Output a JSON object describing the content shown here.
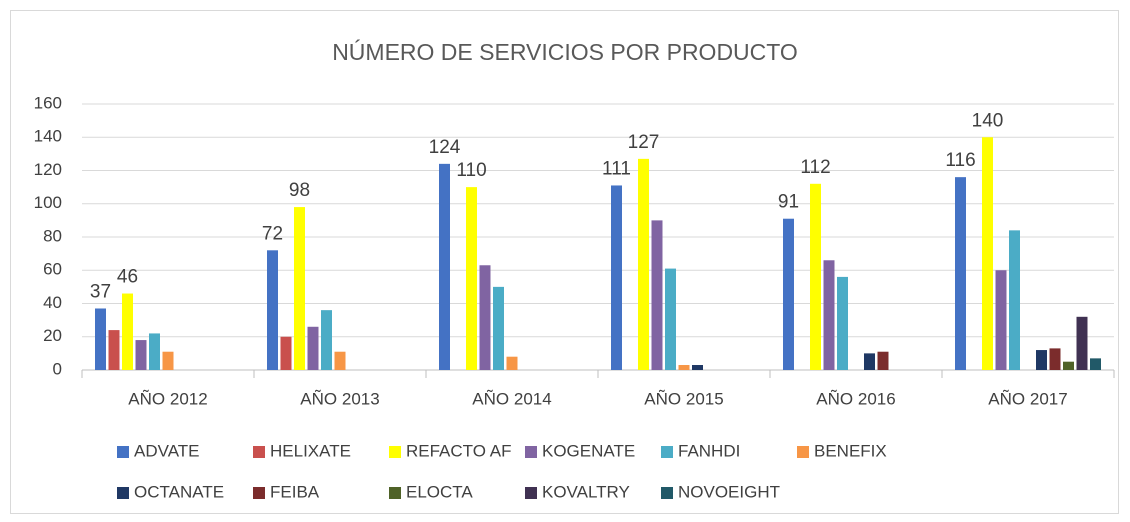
{
  "chart_data": {
    "type": "bar",
    "title": "NÚMERO DE SERVICIOS POR PRODUCTO",
    "categories": [
      "AÑO 2012",
      "AÑO 2013",
      "AÑO 2014",
      "AÑO 2015",
      "AÑO 2016",
      "AÑO 2017"
    ],
    "series": [
      {
        "name": "ADVATE",
        "color": "#4472c4",
        "data_labels": true,
        "values": [
          37,
          72,
          124,
          111,
          91,
          116
        ]
      },
      {
        "name": "HELIXATE",
        "color": "#c9504d",
        "values": [
          24,
          20,
          0,
          0,
          0,
          0
        ]
      },
      {
        "name": "REFACTO AF",
        "color": "#ffff00",
        "data_labels": true,
        "values": [
          46,
          98,
          110,
          127,
          112,
          140
        ]
      },
      {
        "name": "KOGENATE",
        "color": "#8064a2",
        "values": [
          18,
          26,
          63,
          90,
          66,
          60
        ]
      },
      {
        "name": "FANHDI",
        "color": "#4bacc6",
        "values": [
          22,
          36,
          50,
          61,
          56,
          84
        ]
      },
      {
        "name": "BENEFIX",
        "color": "#f79646",
        "values": [
          11,
          11,
          8,
          3,
          0,
          0
        ]
      },
      {
        "name": "OCTANATE",
        "color": "#1f3864",
        "values": [
          0,
          0,
          0,
          3,
          10,
          12
        ]
      },
      {
        "name": "FEIBA",
        "color": "#7b2c2c",
        "values": [
          0,
          0,
          0,
          0,
          11,
          13
        ]
      },
      {
        "name": "ELOCTA",
        "color": "#4f6228",
        "values": [
          0,
          0,
          0,
          0,
          0,
          5
        ]
      },
      {
        "name": "KOVALTRY",
        "color": "#403152",
        "values": [
          0,
          0,
          0,
          0,
          0,
          32
        ]
      },
      {
        "name": "NOVOEIGHT",
        "color": "#215968",
        "values": [
          0,
          0,
          0,
          0,
          0,
          7
        ]
      }
    ],
    "ylim": [
      0,
      160
    ],
    "yticks": [
      0,
      20,
      40,
      60,
      80,
      100,
      120,
      140,
      160
    ],
    "grid": true,
    "legend": "bottom"
  }
}
